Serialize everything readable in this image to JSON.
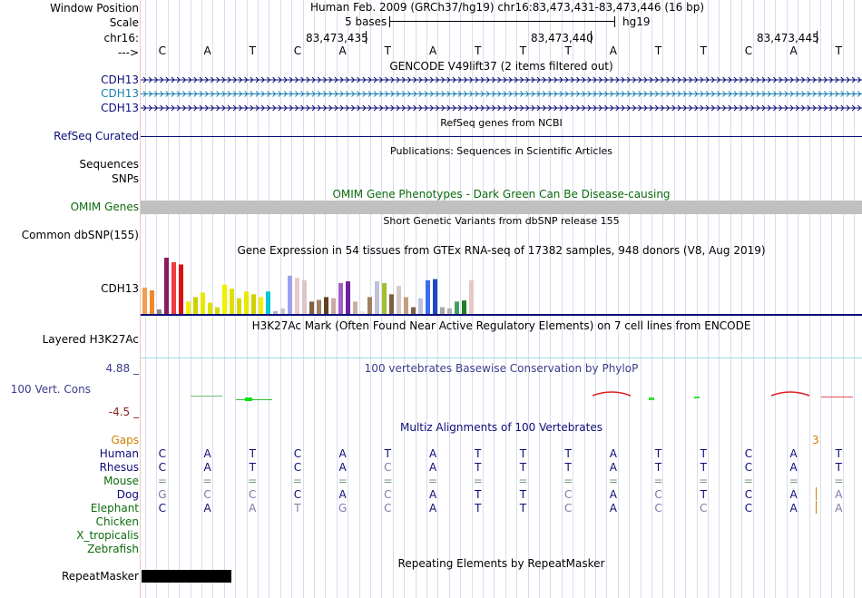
{
  "header": {
    "window_position_label": "Window Position",
    "scale_label": "Scale",
    "chrom_label": "chr16:",
    "arrow_label": "--->",
    "assembly_text": "Human Feb. 2009 (GRCh37/hg19)   chr16:83,473,431-83,473,446 (16 bp)",
    "scale_text": "5 bases",
    "db_text": "hg19",
    "positions": [
      "83,473,435",
      "83,473,440",
      "83,473,445"
    ]
  },
  "sequence": [
    "C",
    "A",
    "T",
    "C",
    "A",
    "T",
    "A",
    "T",
    "T",
    "T",
    "A",
    "T",
    "T",
    "C",
    "A",
    "T"
  ],
  "tracks": {
    "gencode": {
      "title": "GENCODE V49lift37 (2 items filtered out)",
      "items": [
        {
          "label": "CDH13",
          "color": "#0c0c78"
        },
        {
          "label": "CDH13",
          "color": "#1a80b0"
        },
        {
          "label": "CDH13",
          "color": "#0c0c78"
        }
      ]
    },
    "refseq": {
      "title": "RefSeq genes from NCBI",
      "label": "RefSeq Curated",
      "color": "#0c0c78"
    },
    "publications": {
      "title": "Publications: Sequences in Scientific Articles",
      "labels": [
        "Sequences",
        "SNPs"
      ]
    },
    "omim": {
      "title": "OMIM Gene Phenotypes - Dark Green Can Be Disease-causing",
      "label": "OMIM Genes",
      "color": "#0c6c0c"
    },
    "dbsnp": {
      "title": "Short Genetic Variants from dbSNP release 155",
      "label": "Common dbSNP(155)"
    },
    "gtex": {
      "title": "Gene Expression in 54 tissues from GTEx RNA-seq of 17382 samples, 948 donors (V8, Aug 2019)",
      "label": "CDH13"
    },
    "h3k27ac": {
      "title": "H3K27Ac Mark (Often Found Near Active Regulatory Elements) on 7 cell lines from ENCODE",
      "label": "Layered H3K27Ac"
    },
    "phylop": {
      "title": "100 vertebrates Basewise Conservation by PhyloP",
      "label": "100 Vert. Cons",
      "max": "4.88 _",
      "min": "-4.5 _",
      "color": "#3c3c8c",
      "min_color": "#8c1c1c"
    },
    "multiz": {
      "title": "Multiz Alignments of 100 Vertebrates",
      "gaps_label": "Gaps",
      "gap_value": "3",
      "species": [
        {
          "name": "Human",
          "color": "#0c0c78",
          "bases": [
            "C",
            "A",
            "T",
            "C",
            "A",
            "T",
            "A",
            "T",
            "T",
            "T",
            "A",
            "T",
            "T",
            "C",
            "A",
            "T"
          ]
        },
        {
          "name": "Rhesus",
          "color": "#0c0c78",
          "bases": [
            "C",
            "A",
            "T",
            "C",
            "A",
            "C",
            "A",
            "T",
            "T",
            "T",
            "A",
            "T",
            "T",
            "C",
            "A",
            "T"
          ]
        },
        {
          "name": "Mouse",
          "color": "#0c6c0c",
          "bases": [
            "=",
            "=",
            "=",
            "=",
            "=",
            "=",
            "=",
            "=",
            "=",
            "=",
            "=",
            "=",
            "=",
            "=",
            "=",
            "="
          ]
        },
        {
          "name": "Dog",
          "color": "#0c0c78",
          "bases": [
            "G",
            "C",
            "C",
            "C",
            "A",
            "C",
            "A",
            "T",
            "T",
            "C",
            "A",
            "C",
            "T",
            "C",
            "A",
            "A"
          ]
        },
        {
          "name": "Elephant",
          "color": "#0c6c0c",
          "bases": [
            "C",
            "A",
            "A",
            "T",
            "G",
            "C",
            "A",
            "T",
            "T",
            "C",
            "A",
            "C",
            "C",
            "C",
            "A",
            "A"
          ]
        },
        {
          "name": "Chicken",
          "color": "#0c6c0c",
          "bases": []
        },
        {
          "name": "X_tropicalis",
          "color": "#0c6c0c",
          "bases": []
        },
        {
          "name": "Zebrafish",
          "color": "#0c6c0c",
          "bases": []
        }
      ]
    },
    "repeatmasker": {
      "title": "Repeating Elements by RepeatMasker",
      "label": "RepeatMasker"
    }
  },
  "colors": {
    "navy": "#0c0c78",
    "gap_orange": "#d08000"
  },
  "gtex_bars": [
    {
      "color": "#f0a050",
      "h": 0.47
    },
    {
      "color": "#f08a2a",
      "h": 0.42
    },
    {
      "color": "#888888",
      "h": 0.08
    },
    {
      "color": "#8b1a5c",
      "h": 1.0
    },
    {
      "color": "#f03c3c",
      "h": 0.92
    },
    {
      "color": "#d81010",
      "h": 0.88
    },
    {
      "color": "#f0f000",
      "h": 0.22
    },
    {
      "color": "#d0d000",
      "h": 0.3
    },
    {
      "color": "#e8e800",
      "h": 0.38
    },
    {
      "color": "#e0e000",
      "h": 0.2
    },
    {
      "color": "#d8d800",
      "h": 0.12
    },
    {
      "color": "#f0f000",
      "h": 0.52
    },
    {
      "color": "#e0e000",
      "h": 0.45
    },
    {
      "color": "#d8d800",
      "h": 0.28
    },
    {
      "color": "#e8e800",
      "h": 0.4
    },
    {
      "color": "#d0d000",
      "h": 0.35
    },
    {
      "color": "#f0f000",
      "h": 0.3
    },
    {
      "color": "#00c8d8",
      "h": 0.4
    },
    {
      "color": "#b0b0d0",
      "h": 0.05
    },
    {
      "color": "#c8c8c8",
      "h": 0.1
    },
    {
      "color": "#a0a0f0",
      "h": 0.68
    },
    {
      "color": "#e8c8c8",
      "h": 0.64
    },
    {
      "color": "#d8c8c8",
      "h": 0.6
    },
    {
      "color": "#806040",
      "h": 0.22
    },
    {
      "color": "#a08060",
      "h": 0.25
    },
    {
      "color": "#604020",
      "h": 0.3
    },
    {
      "color": "#c8a8a0",
      "h": 0.28
    },
    {
      "color": "#a060c0",
      "h": 0.55
    },
    {
      "color": "#7020a0",
      "h": 0.58
    },
    {
      "color": "#c8b0a0",
      "h": 0.22
    },
    {
      "color": "#e8e8e8",
      "h": 0.05
    },
    {
      "color": "#a08060",
      "h": 0.3
    },
    {
      "color": "#c0c0d8",
      "h": 0.58
    },
    {
      "color": "#a0c030",
      "h": 0.55
    },
    {
      "color": "#806040",
      "h": 0.35
    },
    {
      "color": "#d8c8c8",
      "h": 0.5
    },
    {
      "color": "#c0a080",
      "h": 0.3
    },
    {
      "color": "#806040",
      "h": 0.12
    },
    {
      "color": "#c0c0d8",
      "h": 0.28
    },
    {
      "color": "#3c6cf0",
      "h": 0.6
    },
    {
      "color": "#1c4cc0",
      "h": 0.62
    },
    {
      "color": "#a8a8a8",
      "h": 0.12
    },
    {
      "color": "#b0b0b0",
      "h": 0.1
    },
    {
      "color": "#40a060",
      "h": 0.22
    },
    {
      "color": "#208020",
      "h": 0.24
    },
    {
      "color": "#e8c8c8",
      "h": 0.6
    }
  ]
}
